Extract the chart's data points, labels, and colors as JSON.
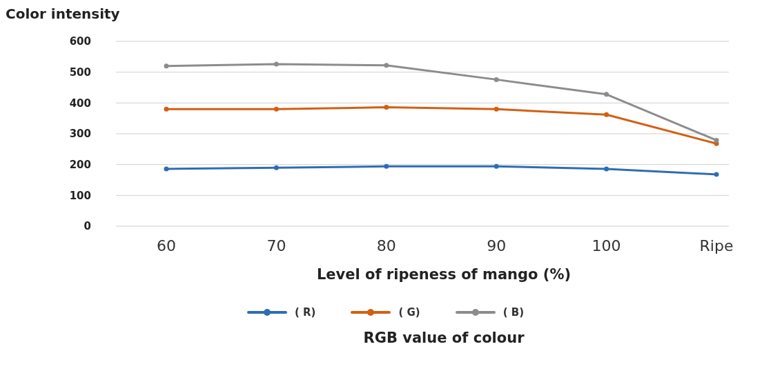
{
  "chart_data": {
    "type": "line",
    "ylabel": "Color intensity",
    "xlabel": "Level of ripeness of mango (%)",
    "legend_title": "RGB value of colour",
    "categories": [
      "60",
      "70",
      "80",
      "90",
      "100",
      "Ripe"
    ],
    "series": [
      {
        "name": "( R)",
        "color": "#2e6db4",
        "values": [
          186,
          190,
          194,
          194,
          186,
          168
        ]
      },
      {
        "name": "( G)",
        "color": "#d35f11",
        "values": [
          380,
          380,
          386,
          380,
          362,
          268
        ]
      },
      {
        "name": "( B)",
        "color": "#8c8c8c",
        "values": [
          520,
          526,
          522,
          476,
          428,
          279
        ]
      }
    ],
    "ylim": [
      0,
      600
    ],
    "yticks": [
      0,
      100,
      200,
      300,
      400,
      500,
      600
    ],
    "grid": "y",
    "legend": "bottom",
    "marker": "circle",
    "line_style": "solid"
  }
}
